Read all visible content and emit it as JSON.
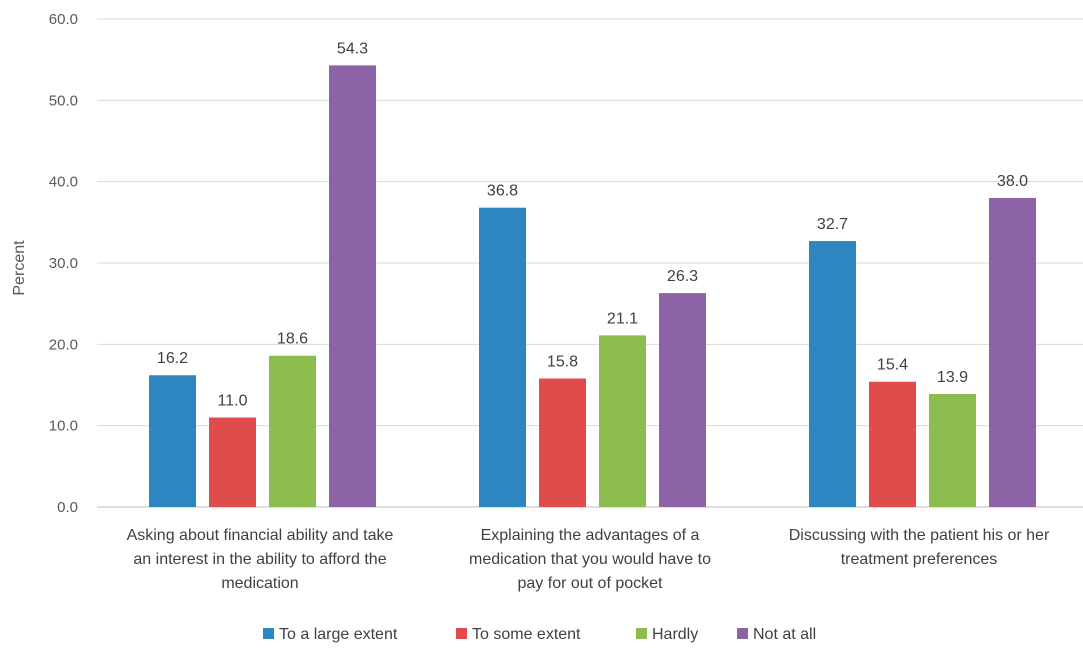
{
  "chart_data": {
    "type": "bar",
    "title": "",
    "xlabel": "",
    "ylabel": "Percent",
    "ylim": [
      0,
      60
    ],
    "yticks": [
      "0.0",
      "10.0",
      "20.0",
      "30.0",
      "40.0",
      "50.0",
      "60.0"
    ],
    "grid": true,
    "legend_position": "bottom",
    "categories": [
      [
        "Asking about financial ability and take",
        "an interest in the ability to afford the",
        "medication"
      ],
      [
        "Explaining the advantages of a",
        "medication that you would have to",
        "pay for out of pocket"
      ],
      [
        "Discussing with the patient his or her",
        "treatment preferences"
      ]
    ],
    "series": [
      {
        "name": "To a large extent",
        "color": "#2E86C1",
        "values": [
          16.2,
          36.8,
          32.7
        ],
        "labels": [
          "16.2",
          "36.8",
          "32.7"
        ]
      },
      {
        "name": "To some extent",
        "color": "#E04B4B",
        "values": [
          11.0,
          15.8,
          15.4
        ],
        "labels": [
          "11.0",
          "15.8",
          "15.4"
        ]
      },
      {
        "name": "Hardly",
        "color": "#8DBD4F",
        "values": [
          18.6,
          21.1,
          13.9
        ],
        "labels": [
          "18.6",
          "21.1",
          "13.9"
        ]
      },
      {
        "name": "Not at all",
        "color": "#8B63A6",
        "values": [
          54.3,
          26.3,
          38.0
        ],
        "labels": [
          "54.3",
          "26.3",
          "38.0"
        ]
      }
    ]
  }
}
